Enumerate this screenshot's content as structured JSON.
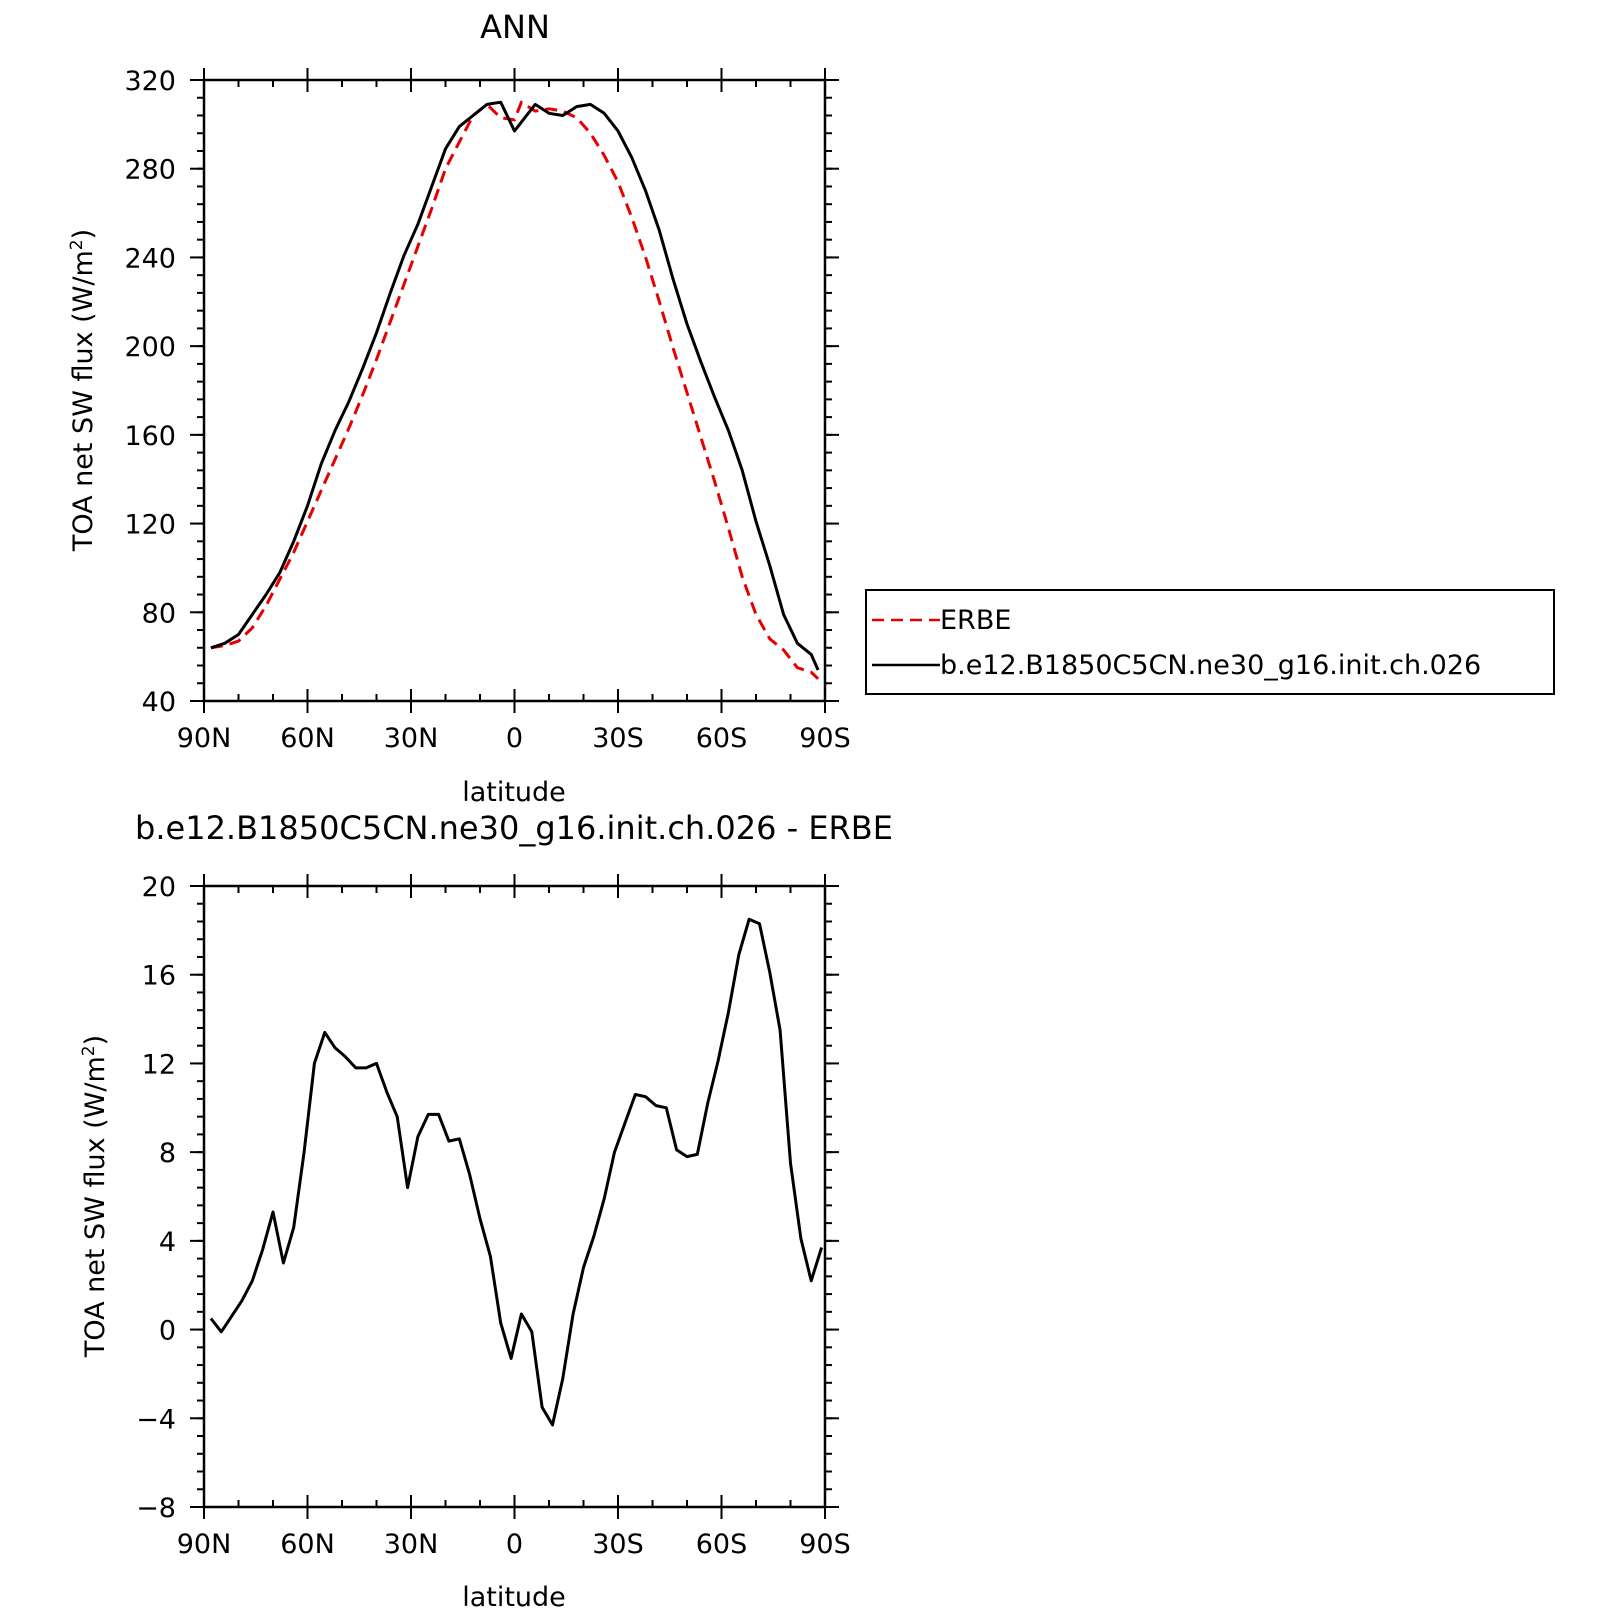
{
  "colors": {
    "model": "#000000",
    "obs": "#e60000"
  },
  "charts": [
    {
      "type": "line",
      "title": "ANN",
      "xlabel": "latitude",
      "ylabel": "TOA net SW flux (W/m",
      "ylabel_sup": "2",
      "ylabel_close": ")",
      "xlim": [
        90,
        -90
      ],
      "ylim": [
        40,
        320
      ],
      "x_ticks": [
        {
          "value": 90,
          "label": "90N"
        },
        {
          "value": 60,
          "label": "60N"
        },
        {
          "value": 30,
          "label": "30N"
        },
        {
          "value": 0,
          "label": "0"
        },
        {
          "value": -30,
          "label": "30S"
        },
        {
          "value": -60,
          "label": "60S"
        },
        {
          "value": -90,
          "label": "90S"
        }
      ],
      "y_ticks": [
        {
          "value": 40,
          "label": "40"
        },
        {
          "value": 80,
          "label": "80"
        },
        {
          "value": 120,
          "label": "120"
        },
        {
          "value": 160,
          "label": "160"
        },
        {
          "value": 200,
          "label": "200"
        },
        {
          "value": 240,
          "label": "240"
        },
        {
          "value": 280,
          "label": "280"
        },
        {
          "value": 320,
          "label": "320"
        }
      ],
      "legend": {
        "placement": "right",
        "entries": [
          "ERBE",
          "b.e12.B1850C5CN.ne30_g16.init.ch.026"
        ]
      },
      "series": [
        {
          "name": "ERBE",
          "style": "dashed",
          "color": "#e60000",
          "points": [
            [
              88,
              64
            ],
            [
              84,
              65
            ],
            [
              80,
              67
            ],
            [
              76,
              73
            ],
            [
              72,
              83
            ],
            [
              68,
              95
            ],
            [
              64,
              107
            ],
            [
              60,
              121
            ],
            [
              56,
              135
            ],
            [
              52,
              149
            ],
            [
              48,
              163
            ],
            [
              44,
              178
            ],
            [
              40,
              194
            ],
            [
              36,
              211
            ],
            [
              32,
              228
            ],
            [
              28,
              245
            ],
            [
              24,
              262
            ],
            [
              20,
              280
            ],
            [
              16,
              292
            ],
            [
              12,
              304
            ],
            [
              8,
              309
            ],
            [
              4,
              303
            ],
            [
              0,
              302
            ],
            [
              -2,
              310
            ],
            [
              -6,
              306
            ],
            [
              -10,
              307
            ],
            [
              -14,
              306
            ],
            [
              -18,
              303
            ],
            [
              -22,
              296
            ],
            [
              -26,
              286
            ],
            [
              -30,
              274
            ],
            [
              -34,
              258
            ],
            [
              -38,
              240
            ],
            [
              -42,
              220
            ],
            [
              -46,
              199
            ],
            [
              -50,
              179
            ],
            [
              -54,
              159
            ],
            [
              -58,
              139
            ],
            [
              -62,
              118
            ],
            [
              -66,
              96
            ],
            [
              -70,
              79
            ],
            [
              -74,
              68
            ],
            [
              -78,
              63
            ],
            [
              -82,
              55
            ],
            [
              -86,
              53
            ],
            [
              -88,
              50
            ]
          ]
        },
        {
          "name": "b.e12.B1850C5CN.ne30_g16.init.ch.026",
          "style": "solid",
          "color": "#000000",
          "points": [
            [
              88,
              64
            ],
            [
              84,
              66
            ],
            [
              80,
              70
            ],
            [
              76,
              79
            ],
            [
              72,
              88
            ],
            [
              68,
              98
            ],
            [
              64,
              112
            ],
            [
              60,
              128
            ],
            [
              56,
              147
            ],
            [
              52,
              162
            ],
            [
              48,
              175
            ],
            [
              44,
              190
            ],
            [
              40,
              206
            ],
            [
              36,
              224
            ],
            [
              32,
              241
            ],
            [
              28,
              255
            ],
            [
              24,
              272
            ],
            [
              20,
              289
            ],
            [
              16,
              299
            ],
            [
              12,
              304
            ],
            [
              8,
              309
            ],
            [
              4,
              310
            ],
            [
              0,
              297
            ],
            [
              -2,
              301
            ],
            [
              -6,
              309
            ],
            [
              -10,
              305
            ],
            [
              -14,
              304
            ],
            [
              -18,
              308
            ],
            [
              -22,
              309
            ],
            [
              -26,
              305
            ],
            [
              -30,
              297
            ],
            [
              -34,
              285
            ],
            [
              -38,
              270
            ],
            [
              -42,
              252
            ],
            [
              -46,
              230
            ],
            [
              -50,
              210
            ],
            [
              -54,
              193
            ],
            [
              -58,
              177
            ],
            [
              -62,
              162
            ],
            [
              -66,
              144
            ],
            [
              -70,
              121
            ],
            [
              -74,
              101
            ],
            [
              -78,
              79
            ],
            [
              -82,
              66
            ],
            [
              -86,
              61
            ],
            [
              -88,
              54
            ]
          ]
        }
      ]
    },
    {
      "type": "line",
      "title": "b.e12.B1850C5CN.ne30_g16.init.ch.026 - ERBE",
      "xlabel": "latitude",
      "ylabel": "TOA net SW flux (W/m",
      "ylabel_sup": "2",
      "ylabel_close": ")",
      "xlim": [
        90,
        -90
      ],
      "ylim": [
        -8,
        20
      ],
      "x_ticks": [
        {
          "value": 90,
          "label": "90N"
        },
        {
          "value": 60,
          "label": "60N"
        },
        {
          "value": 30,
          "label": "30N"
        },
        {
          "value": 0,
          "label": "0"
        },
        {
          "value": -30,
          "label": "30S"
        },
        {
          "value": -60,
          "label": "60S"
        },
        {
          "value": -90,
          "label": "90S"
        }
      ],
      "y_ticks": [
        {
          "value": -8,
          "label": "−8"
        },
        {
          "value": -4,
          "label": "−4"
        },
        {
          "value": 0,
          "label": "0"
        },
        {
          "value": 4,
          "label": "4"
        },
        {
          "value": 8,
          "label": "8"
        },
        {
          "value": 12,
          "label": "12"
        },
        {
          "value": 16,
          "label": "16"
        },
        {
          "value": 20,
          "label": "20"
        }
      ],
      "series": [
        {
          "style": "solid",
          "color": "#000000",
          "points": [
            [
              88,
              0.5
            ],
            [
              85,
              -0.1
            ],
            [
              82,
              0.6
            ],
            [
              79,
              1.3
            ],
            [
              76,
              2.2
            ],
            [
              73,
              3.6
            ],
            [
              70,
              5.3
            ],
            [
              67,
              3.0
            ],
            [
              64,
              4.6
            ],
            [
              61,
              8.0
            ],
            [
              58,
              12.0
            ],
            [
              55,
              13.4
            ],
            [
              52,
              12.7
            ],
            [
              49,
              12.3
            ],
            [
              46,
              11.8
            ],
            [
              43,
              11.8
            ],
            [
              40,
              12.0
            ],
            [
              37,
              10.7
            ],
            [
              34,
              9.6
            ],
            [
              31,
              6.4
            ],
            [
              28,
              8.7
            ],
            [
              25,
              9.7
            ],
            [
              22,
              9.7
            ],
            [
              19,
              8.5
            ],
            [
              16,
              8.6
            ],
            [
              13,
              7.0
            ],
            [
              10,
              5.0
            ],
            [
              7,
              3.3
            ],
            [
              4,
              0.3
            ],
            [
              1,
              -1.3
            ],
            [
              -2,
              0.7
            ],
            [
              -5,
              -0.1
            ],
            [
              -8,
              -3.5
            ],
            [
              -11,
              -4.3
            ],
            [
              -14,
              -2.2
            ],
            [
              -17,
              0.7
            ],
            [
              -20,
              2.8
            ],
            [
              -23,
              4.2
            ],
            [
              -26,
              5.9
            ],
            [
              -29,
              8.0
            ],
            [
              -32,
              9.3
            ],
            [
              -35,
              10.6
            ],
            [
              -38,
              10.5
            ],
            [
              -41,
              10.1
            ],
            [
              -44,
              10.0
            ],
            [
              -47,
              8.1
            ],
            [
              -50,
              7.8
            ],
            [
              -53,
              7.9
            ],
            [
              -56,
              10.2
            ],
            [
              -59,
              12.1
            ],
            [
              -62,
              14.3
            ],
            [
              -65,
              16.9
            ],
            [
              -68,
              18.5
            ],
            [
              -71,
              18.3
            ],
            [
              -74,
              16.1
            ],
            [
              -77,
              13.5
            ],
            [
              -80,
              7.5
            ],
            [
              -83,
              4.1
            ],
            [
              -86,
              2.2
            ],
            [
              -89,
              3.7
            ]
          ]
        }
      ]
    }
  ]
}
